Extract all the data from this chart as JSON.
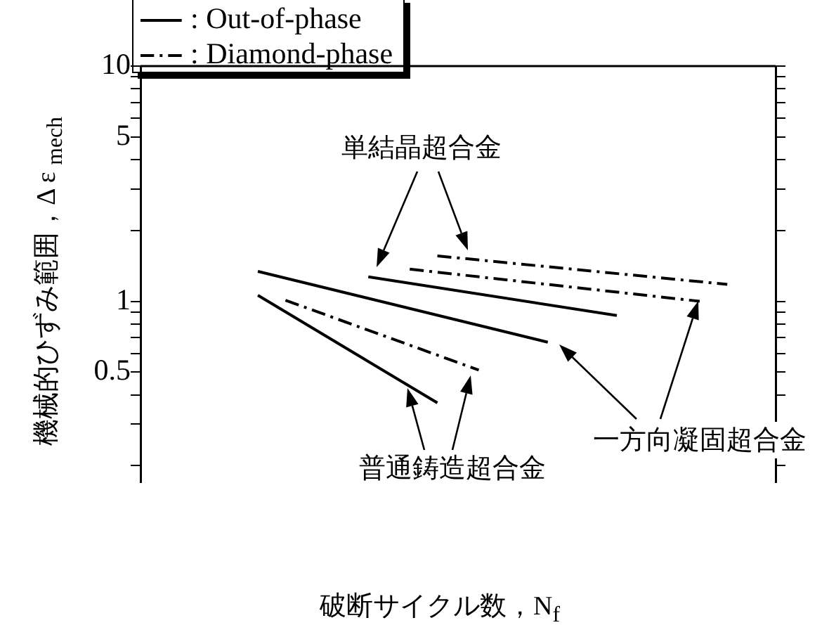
{
  "chart_data": {
    "type": "line",
    "xlabel": "破断サイクル数，N$_{f}$",
    "ylabel": "機械的ひずみ範囲，Δ ε $_{mech}$",
    "categories": [
      null,
      null,
      null,
      null,
      null,
      null,
      null,
      null,
      null,
      null,
      null,
      null,
      null,
      null,
      null,
      null,
      null,
      null,
      null,
      null,
      null,
      null,
      null,
      null,
      null,
      null,
      null,
      null,
      null,
      null,
      null,
      null,
      null,
      null,
      null,
      null,
      null,
      null,
      null,
      null,
      null,
      null,
      null,
      null,
      null,
      null
    ],
    "log": "y",
    "ylim": [
      0.17,
      10
    ],
    "yticks": [
      {
        "value": 0.2,
        "label": null
      },
      {
        "value": 0.3,
        "label": null
      },
      {
        "value": 0.4,
        "label": null
      },
      0.5,
      {
        "value": 0.6,
        "label": null
      },
      {
        "value": 0.7,
        "label": null
      },
      {
        "value": 0.8,
        "label": null
      },
      {
        "value": 0.9,
        "label": null
      },
      1,
      {
        "value": 2,
        "label": null
      },
      {
        "value": 3,
        "label": null
      },
      {
        "value": 4,
        "label": null
      },
      5,
      {
        "value": 6,
        "label": null
      },
      {
        "value": 7,
        "label": null
      },
      {
        "value": 8,
        "label": null
      },
      {
        "value": 9,
        "label": null
      },
      10
    ],
    "tick_labels": "y",
    "grid": false,
    "legend": "top left",
    "marker": "none",
    "series": [
      {
        "name": ": Out-of-phase",
        "color": "#000000",
        "line_style": "solid",
        "values": [
          null,
          null,
          null,
          null,
          null,
          null,
          null,
          null,
          1.34,
          null,
          null,
          null,
          null,
          null,
          null,
          null,
          null,
          null,
          null,
          null,
          null,
          null,
          null,
          null,
          null,
          null,
          null,
          null,
          null,
          0.67,
          null,
          null,
          null,
          null,
          null,
          null,
          null,
          null,
          null,
          null,
          null,
          null,
          null,
          null,
          null,
          null
        ]
      },
      {
        "color": "#000000",
        "line_style": "solid",
        "values": [
          null,
          null,
          null,
          null,
          null,
          null,
          null,
          null,
          null,
          null,
          null,
          null,
          null,
          null,
          null,
          null,
          1.27,
          null,
          null,
          null,
          null,
          null,
          null,
          null,
          null,
          null,
          null,
          null,
          null,
          null,
          null,
          null,
          null,
          null,
          0.87,
          null,
          null,
          null,
          null,
          null,
          null,
          null,
          null,
          null,
          null,
          null
        ]
      },
      {
        "color": "#000000",
        "line_style": "solid",
        "values": [
          null,
          null,
          null,
          null,
          null,
          null,
          null,
          null,
          1.06,
          null,
          null,
          null,
          null,
          null,
          null,
          null,
          null,
          null,
          null,
          null,
          null,
          0.37,
          null,
          null,
          null,
          null,
          null,
          null,
          null,
          null,
          null,
          null,
          null,
          null,
          null,
          null,
          null,
          null,
          null,
          null,
          null,
          null,
          null,
          null,
          null,
          null
        ]
      },
      {
        "name": ": Diamond-phase",
        "color": "#000000",
        "line_style": "dashed",
        "values": [
          null,
          null,
          null,
          null,
          null,
          null,
          null,
          null,
          null,
          null,
          null,
          null,
          null,
          null,
          null,
          null,
          null,
          null,
          null,
          null,
          null,
          1.56,
          null,
          null,
          null,
          null,
          null,
          null,
          null,
          null,
          null,
          null,
          null,
          null,
          null,
          null,
          null,
          null,
          null,
          null,
          null,
          null,
          1.18,
          null,
          null,
          null
        ]
      },
      {
        "color": "#000000",
        "line_style": "dashed",
        "values": [
          null,
          null,
          null,
          null,
          null,
          null,
          null,
          null,
          null,
          null,
          null,
          null,
          null,
          null,
          null,
          null,
          null,
          null,
          null,
          1.37,
          null,
          null,
          null,
          null,
          null,
          null,
          null,
          null,
          null,
          null,
          null,
          null,
          null,
          null,
          null,
          null,
          null,
          null,
          null,
          null,
          1.0,
          null,
          null,
          null,
          null,
          null
        ]
      },
      {
        "color": "#000000",
        "line_style": "dashed",
        "values": [
          null,
          null,
          null,
          null,
          null,
          null,
          null,
          null,
          null,
          null,
          1.01,
          null,
          null,
          null,
          null,
          null,
          null,
          null,
          null,
          null,
          null,
          null,
          null,
          null,
          0.51,
          null,
          null,
          null,
          null,
          null,
          null,
          null,
          null,
          null,
          null,
          null,
          null,
          null,
          null,
          null,
          null,
          null,
          null,
          null,
          null,
          null
        ]
      }
    ],
    "annotations": [
      "単結晶超合金",
      "普通鋳造超合金",
      "一方向凝固超合金"
    ]
  }
}
